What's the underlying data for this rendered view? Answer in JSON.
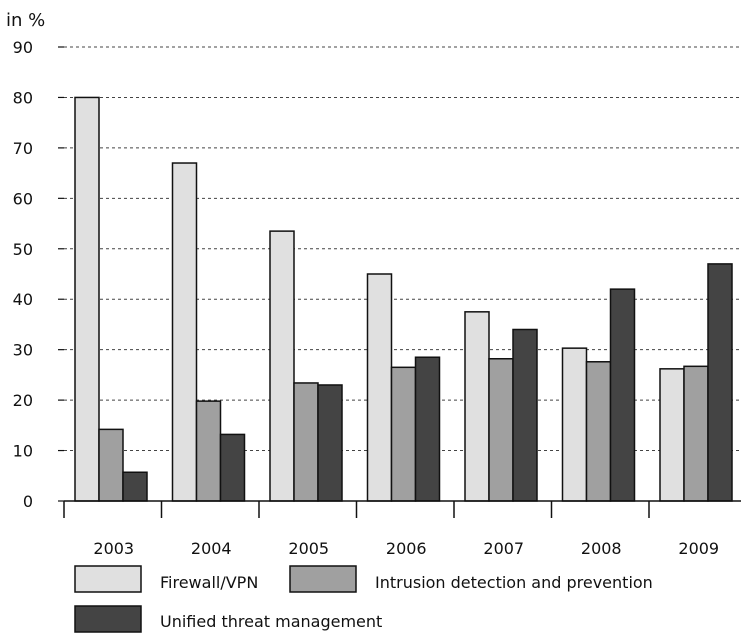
{
  "chart_data": {
    "type": "bar",
    "title": "",
    "xlabel": "",
    "ylabel": "in %",
    "ylim": [
      0,
      90
    ],
    "yticks": [
      0,
      10,
      20,
      30,
      40,
      50,
      60,
      70,
      80,
      90
    ],
    "grid": true,
    "legend_position": "bottom",
    "categories": [
      "2003",
      "2004",
      "2005",
      "2006",
      "2007",
      "2008",
      "2009"
    ],
    "series": [
      {
        "name": "Firewall/VPN",
        "color": "#e0e0e0",
        "values": [
          80,
          67,
          53.5,
          45,
          37.5,
          30.3,
          26.2
        ]
      },
      {
        "name": "Intrusion detection and prevention",
        "color": "#a0a0a0",
        "values": [
          14.2,
          19.8,
          23.4,
          26.5,
          28.2,
          27.6,
          26.7
        ]
      },
      {
        "name": "Unified threat management",
        "color": "#444444",
        "values": [
          5.7,
          13.2,
          23,
          28.5,
          34,
          42,
          47
        ]
      }
    ]
  }
}
